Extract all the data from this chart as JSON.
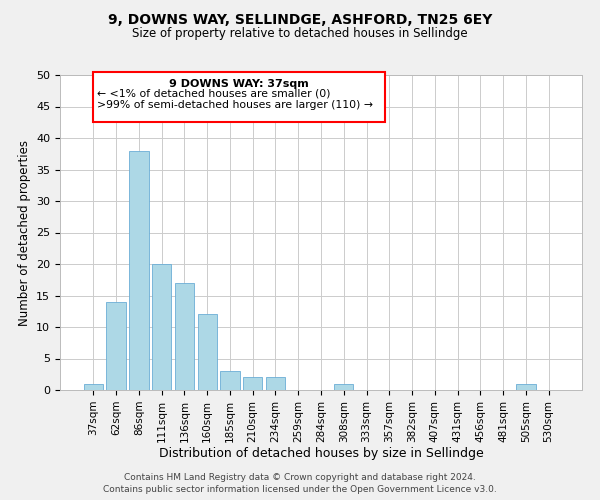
{
  "title": "9, DOWNS WAY, SELLINDGE, ASHFORD, TN25 6EY",
  "subtitle": "Size of property relative to detached houses in Sellindge",
  "xlabel": "Distribution of detached houses by size in Sellindge",
  "ylabel": "Number of detached properties",
  "bar_labels": [
    "37sqm",
    "62sqm",
    "86sqm",
    "111sqm",
    "136sqm",
    "160sqm",
    "185sqm",
    "210sqm",
    "234sqm",
    "259sqm",
    "284sqm",
    "308sqm",
    "333sqm",
    "357sqm",
    "382sqm",
    "407sqm",
    "431sqm",
    "456sqm",
    "481sqm",
    "505sqm",
    "530sqm"
  ],
  "bar_values": [
    1,
    14,
    38,
    20,
    17,
    12,
    3,
    2,
    2,
    0,
    0,
    1,
    0,
    0,
    0,
    0,
    0,
    0,
    0,
    1,
    0
  ],
  "bar_color": "#add8e6",
  "bar_edge_color": "#6baed6",
  "ylim": [
    0,
    50
  ],
  "yticks": [
    0,
    5,
    10,
    15,
    20,
    25,
    30,
    35,
    40,
    45,
    50
  ],
  "ann_line1": "9 DOWNS WAY: 37sqm",
  "ann_line2": "← <1% of detached houses are smaller (0)",
  "ann_line3": ">99% of semi-detached houses are larger (110) →",
  "footer_line1": "Contains HM Land Registry data © Crown copyright and database right 2024.",
  "footer_line2": "Contains public sector information licensed under the Open Government Licence v3.0.",
  "background_color": "#f0f0f0",
  "plot_bg_color": "#ffffff",
  "grid_color": "#cccccc",
  "title_fontsize": 10,
  "subtitle_fontsize": 8.5,
  "ylabel_fontsize": 8.5,
  "xlabel_fontsize": 9,
  "tick_fontsize": 8,
  "xtick_fontsize": 7.5,
  "footer_fontsize": 6.5
}
